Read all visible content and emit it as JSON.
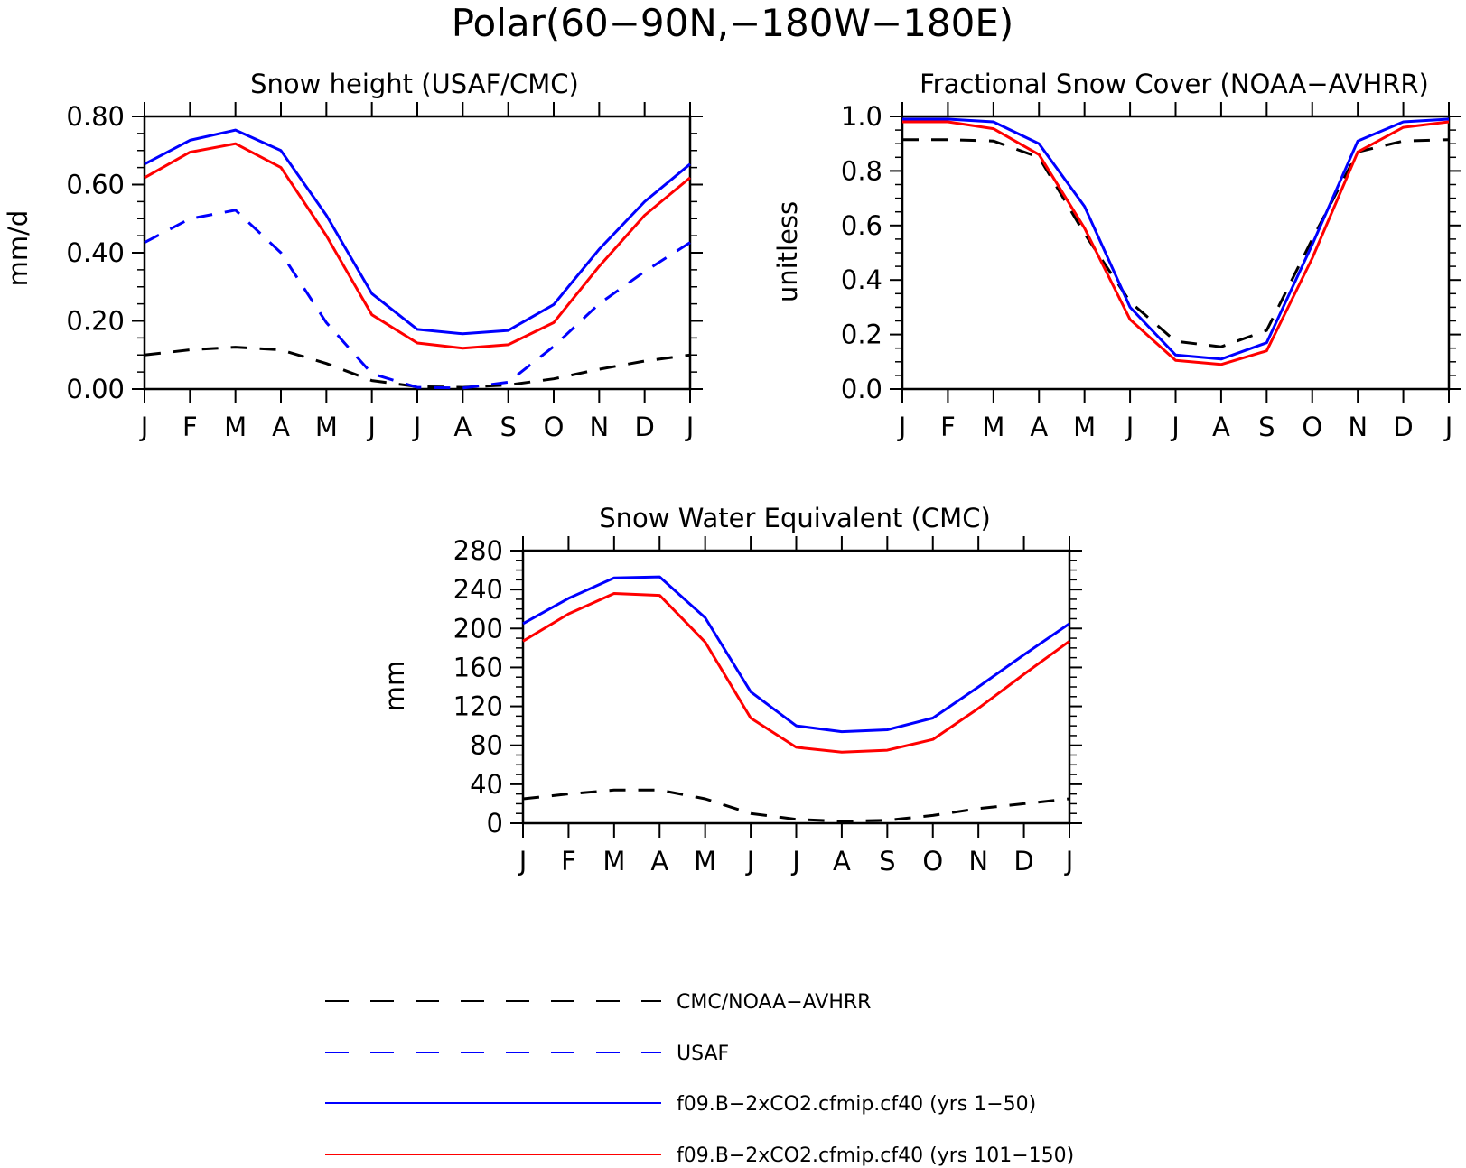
{
  "figure": {
    "title": "Polar(60−90N,−180W−180E)"
  },
  "styles": {
    "series_colors": {
      "CMC/NOAA-AVHRR": "#000000",
      "USAF": "#0000ff",
      "f09.B-2xCO2.cfmip.cf40 (yrs 1-50)": "#0000ff",
      "f09.B-2xCO2.cfmip.cf40 (yrs 101-150)": "#ff0000"
    }
  },
  "legend": {
    "items": [
      {
        "label": "CMC/NOAA−AVHRR",
        "color": "#000000",
        "dashed": true
      },
      {
        "label": "USAF",
        "color": "#0000ff",
        "dashed": true
      },
      {
        "label": "f09.B−2xCO2.cfmip.cf40 (yrs 1−50)",
        "color": "#0000ff",
        "dashed": false
      },
      {
        "label": "f09.B−2xCO2.cfmip.cf40 (yrs 101−150)",
        "color": "#ff0000",
        "dashed": false
      }
    ]
  },
  "chart_data": [
    {
      "type": "line",
      "title": "Snow height (USAF/CMC)",
      "ylabel": "mm/d",
      "xlabel": "",
      "categories": [
        "J",
        "F",
        "M",
        "A",
        "M",
        "J",
        "J",
        "A",
        "S",
        "O",
        "N",
        "D",
        "J"
      ],
      "ylim": [
        0,
        0.8
      ],
      "yticks": [
        "0.00",
        "0.20",
        "0.40",
        "0.60",
        "0.80"
      ],
      "series": [
        {
          "name": "CMC/NOAA−AVHRR",
          "color": "#000000",
          "dashed": true,
          "values": [
            0.1,
            0.115,
            0.123,
            0.115,
            0.075,
            0.025,
            0.007,
            0.005,
            0.012,
            0.03,
            0.058,
            0.082,
            0.1
          ]
        },
        {
          "name": "USAF",
          "color": "#0000ff",
          "dashed": true,
          "values": [
            0.43,
            0.5,
            0.525,
            0.4,
            0.195,
            0.045,
            0.005,
            0.003,
            0.02,
            0.125,
            0.25,
            0.345,
            0.43
          ]
        },
        {
          "name": "f09.B−2xCO2.cfmip.cf40 (yrs 1−50)",
          "color": "#0000ff",
          "dashed": false,
          "values": [
            0.66,
            0.73,
            0.76,
            0.7,
            0.51,
            0.28,
            0.175,
            0.162,
            0.172,
            0.248,
            0.41,
            0.55,
            0.66
          ]
        },
        {
          "name": "f09.B−2xCO2.cfmip.cf40 (yrs 101−150)",
          "color": "#ff0000",
          "dashed": false,
          "values": [
            0.62,
            0.695,
            0.72,
            0.65,
            0.45,
            0.218,
            0.135,
            0.12,
            0.13,
            0.195,
            0.36,
            0.51,
            0.62
          ]
        }
      ],
      "grid": false
    },
    {
      "type": "line",
      "title": "Fractional Snow Cover (NOAA−AVHRR)",
      "ylabel": "unitless",
      "xlabel": "",
      "categories": [
        "J",
        "F",
        "M",
        "A",
        "M",
        "J",
        "J",
        "A",
        "S",
        "O",
        "N",
        "D",
        "J"
      ],
      "ylim": [
        0,
        1.0
      ],
      "yticks": [
        "0.0",
        "0.2",
        "0.4",
        "0.6",
        "0.8",
        "1.0"
      ],
      "series": [
        {
          "name": "CMC/NOAA−AVHRR",
          "color": "#000000",
          "dashed": true,
          "values": [
            0.915,
            0.915,
            0.91,
            0.85,
            0.57,
            0.32,
            0.175,
            0.155,
            0.215,
            0.55,
            0.87,
            0.91,
            0.915
          ]
        },
        {
          "name": "f09.B−2xCO2.cfmip.cf40 (yrs 1−50)",
          "color": "#0000ff",
          "dashed": false,
          "values": [
            0.99,
            0.99,
            0.98,
            0.9,
            0.67,
            0.3,
            0.125,
            0.11,
            0.17,
            0.53,
            0.91,
            0.98,
            0.99
          ]
        },
        {
          "name": "f09.B−2xCO2.cfmip.cf40 (yrs 101−150)",
          "color": "#ff0000",
          "dashed": false,
          "values": [
            0.98,
            0.98,
            0.955,
            0.86,
            0.59,
            0.255,
            0.105,
            0.09,
            0.14,
            0.48,
            0.87,
            0.96,
            0.98
          ]
        }
      ],
      "grid": false
    },
    {
      "type": "line",
      "title": "Snow Water Equivalent (CMC)",
      "ylabel": "mm",
      "xlabel": "",
      "categories": [
        "J",
        "F",
        "M",
        "A",
        "M",
        "J",
        "J",
        "A",
        "S",
        "O",
        "N",
        "D",
        "J"
      ],
      "ylim": [
        0,
        280
      ],
      "yticks": [
        "0",
        "40",
        "80",
        "120",
        "160",
        "200",
        "240",
        "280"
      ],
      "series": [
        {
          "name": "CMC/NOAA−AVHRR",
          "color": "#000000",
          "dashed": true,
          "values": [
            25,
            30,
            34,
            34,
            25,
            10,
            4,
            2,
            3,
            8,
            15,
            20,
            25
          ]
        },
        {
          "name": "f09.B−2xCO2.cfmip.cf40 (yrs 1−50)",
          "color": "#0000ff",
          "dashed": false,
          "values": [
            205,
            231,
            252,
            253,
            211,
            135,
            100,
            94,
            96,
            108,
            140,
            173,
            205
          ]
        },
        {
          "name": "f09.B−2xCO2.cfmip.cf40 (yrs 101−150)",
          "color": "#ff0000",
          "dashed": false,
          "values": [
            187,
            215,
            236,
            234,
            186,
            108,
            78,
            73,
            75,
            86,
            118,
            153,
            187
          ]
        }
      ],
      "grid": false
    }
  ]
}
